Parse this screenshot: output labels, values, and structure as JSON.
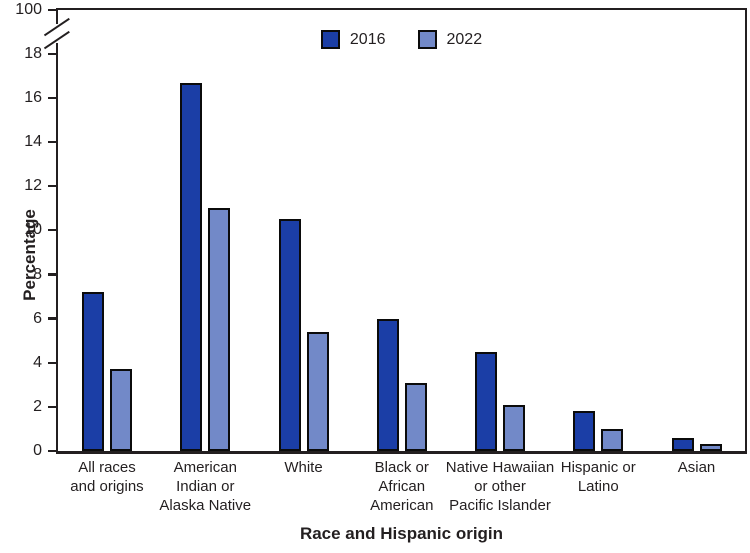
{
  "chart_data": {
    "type": "bar",
    "title": "",
    "xlabel": "Race and Hispanic origin",
    "ylabel": "Percentage",
    "ylim": [
      0,
      18
    ],
    "y_ticks": [
      0,
      2,
      4,
      6,
      8,
      10,
      12,
      14,
      16,
      18
    ],
    "y_axis_break": {
      "shown": true,
      "upper_label": "100"
    },
    "grid": false,
    "legend_position": "top-center",
    "categories": [
      [
        "All races",
        "and origins"
      ],
      [
        "American",
        "Indian or",
        "Alaska Native"
      ],
      [
        "White"
      ],
      [
        "Black or",
        "African",
        "American"
      ],
      [
        "Native Hawaiian",
        "or other",
        "Pacific Islander"
      ],
      [
        "Hispanic or",
        "Latino"
      ],
      [
        "Asian"
      ]
    ],
    "series": [
      {
        "name": "2016",
        "color": "#1b3ea6",
        "values": [
          7.2,
          16.7,
          10.5,
          6.0,
          4.5,
          1.8,
          0.6
        ]
      },
      {
        "name": "2022",
        "color": "#7289c8",
        "values": [
          3.7,
          11.0,
          5.4,
          3.1,
          2.1,
          1.0,
          0.3
        ]
      }
    ]
  },
  "colors": {
    "axis": "#231f20",
    "text": "#231f20",
    "bar_border": "#0b0b0b",
    "background": "#ffffff"
  }
}
